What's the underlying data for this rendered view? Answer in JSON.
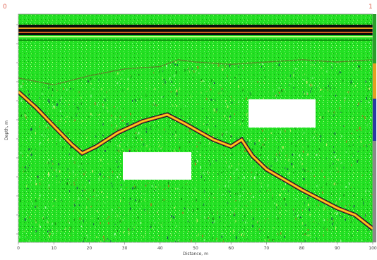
{
  "chart_data": {
    "type": "heatmap",
    "title": "",
    "xlabel": "Distance, m",
    "ylabel": "Depth, m",
    "xlim": [
      0,
      100
    ],
    "x_ticks": [
      "0",
      "10",
      "20",
      "30",
      "40",
      "50",
      "60",
      "70",
      "80",
      "90",
      "100"
    ],
    "corner_labels": {
      "left": "0",
      "right": "1"
    },
    "reflector_main": {
      "x": [
        0,
        5,
        10,
        15,
        18,
        22,
        28,
        35,
        42,
        47,
        55,
        60,
        63,
        66,
        70,
        80,
        90,
        95,
        100
      ],
      "depth_fraction": [
        0.34,
        0.41,
        0.49,
        0.57,
        0.61,
        0.58,
        0.52,
        0.47,
        0.44,
        0.48,
        0.55,
        0.58,
        0.55,
        0.62,
        0.68,
        0.77,
        0.85,
        0.88,
        0.94
      ]
    },
    "surface_top": {
      "x": [
        0,
        10,
        20,
        30,
        40,
        45,
        50,
        60,
        70,
        80,
        90,
        100
      ],
      "depth_fraction": [
        0.28,
        0.31,
        0.27,
        0.24,
        0.23,
        0.2,
        0.21,
        0.22,
        0.21,
        0.2,
        0.21,
        0.2
      ]
    },
    "colors": {
      "background": "#22e022",
      "bands": "#0b0b0b",
      "reflector": "#ffd21e"
    }
  }
}
